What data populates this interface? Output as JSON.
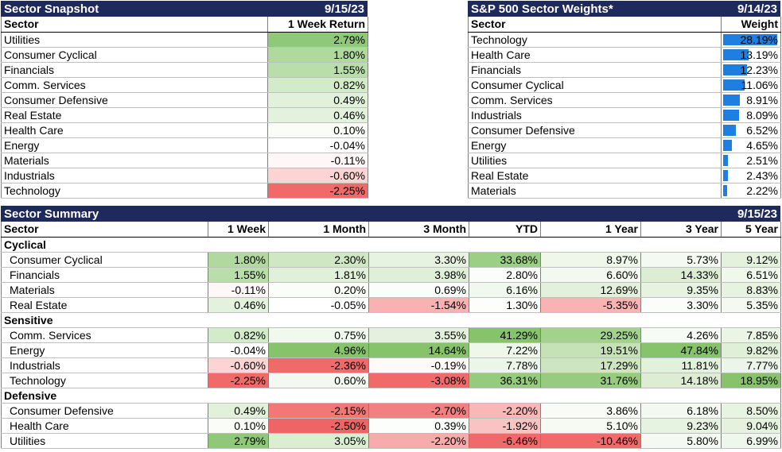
{
  "snapshot": {
    "title": "Sector Snapshot",
    "date": "9/15/23",
    "col_sector": "Sector",
    "col_return": "1 Week Return",
    "rows": [
      {
        "sector": "Utilities",
        "ret": "2.79%",
        "color": "#8fc878"
      },
      {
        "sector": "Consumer Cyclical",
        "ret": "1.80%",
        "color": "#b1d99f"
      },
      {
        "sector": "Financials",
        "ret": "1.55%",
        "color": "#badea9"
      },
      {
        "sector": "Comm. Services",
        "ret": "0.82%",
        "color": "#d4ebca"
      },
      {
        "sector": "Consumer Defensive",
        "ret": "0.49%",
        "color": "#e2f1da"
      },
      {
        "sector": "Real Estate",
        "ret": "0.46%",
        "color": "#e3f2dc"
      },
      {
        "sector": "Health Care",
        "ret": "0.10%",
        "color": "#f9fcf7"
      },
      {
        "sector": "Energy",
        "ret": "-0.04%",
        "color": "#ffffff"
      },
      {
        "sector": "Materials",
        "ret": "-0.11%",
        "color": "#fff7f7"
      },
      {
        "sector": "Industrials",
        "ret": "-0.60%",
        "color": "#fcd4d4"
      },
      {
        "sector": "Technology",
        "ret": "-2.25%",
        "color": "#f06a6a"
      }
    ]
  },
  "weights": {
    "title": "S&P 500 Sector Weights*",
    "date": "9/14/23",
    "col_sector": "Sector",
    "col_weight": "Weight",
    "bar_color": "#1f7fe0",
    "rows": [
      {
        "sector": "Technology",
        "weight": "28.19%",
        "value": 28.19
      },
      {
        "sector": "Health Care",
        "weight": "13.19%",
        "value": 13.19
      },
      {
        "sector": "Financials",
        "weight": "12.23%",
        "value": 12.23
      },
      {
        "sector": "Consumer Cyclical",
        "weight": "11.06%",
        "value": 11.06
      },
      {
        "sector": "Comm. Services",
        "weight": "8.91%",
        "value": 8.91
      },
      {
        "sector": "Industrials",
        "weight": "8.09%",
        "value": 8.09
      },
      {
        "sector": "Consumer Defensive",
        "weight": "6.52%",
        "value": 6.52
      },
      {
        "sector": "Energy",
        "weight": "4.65%",
        "value": 4.65
      },
      {
        "sector": "Utilities",
        "weight": "2.51%",
        "value": 2.51
      },
      {
        "sector": "Real Estate",
        "weight": "2.43%",
        "value": 2.43
      },
      {
        "sector": "Materials",
        "weight": "2.22%",
        "value": 2.22
      }
    ]
  },
  "summary": {
    "title": "Sector Summary",
    "date": "9/15/23",
    "headers": [
      "Sector",
      "1 Week",
      "1 Month",
      "3 Month",
      "YTD",
      "1 Year",
      "3 Year",
      "5 Year"
    ],
    "groups": [
      {
        "name": "Cyclical",
        "rows": [
          {
            "sector": "Consumer Cyclical",
            "cells": [
              {
                "v": "1.80%",
                "c": "#b1d99f"
              },
              {
                "v": "2.30%",
                "c": "#cfe8c3"
              },
              {
                "v": "3.30%",
                "c": "#e6f3e0"
              },
              {
                "v": "33.68%",
                "c": "#9ccf86"
              },
              {
                "v": "8.97%",
                "c": "#eef7ea"
              },
              {
                "v": "5.73%",
                "c": "#f4faf1"
              },
              {
                "v": "9.12%",
                "c": "#e4f2dd"
              }
            ]
          },
          {
            "sector": "Financials",
            "cells": [
              {
                "v": "1.55%",
                "c": "#badea9"
              },
              {
                "v": "1.81%",
                "c": "#e1f0d9"
              },
              {
                "v": "3.98%",
                "c": "#e0f0d8"
              },
              {
                "v": "2.80%",
                "c": "#fafdf9"
              },
              {
                "v": "6.60%",
                "c": "#f3f9f0"
              },
              {
                "v": "14.33%",
                "c": "#dcedd3"
              },
              {
                "v": "6.51%",
                "c": "#f0f8ec"
              }
            ]
          },
          {
            "sector": "Materials",
            "cells": [
              {
                "v": "-0.11%",
                "c": "#fff7f7"
              },
              {
                "v": "0.20%",
                "c": "#fafdf8"
              },
              {
                "v": "0.69%",
                "c": "#fbfdfa"
              },
              {
                "v": "6.16%",
                "c": "#f1f8ed"
              },
              {
                "v": "12.69%",
                "c": "#e3f1dc"
              },
              {
                "v": "9.35%",
                "c": "#e6f3e0"
              },
              {
                "v": "8.83%",
                "c": "#e6f3df"
              }
            ]
          },
          {
            "sector": "Real Estate",
            "cells": [
              {
                "v": "0.46%",
                "c": "#e3f2dc"
              },
              {
                "v": "-0.05%",
                "c": "#ffffff"
              },
              {
                "v": "-1.54%",
                "c": "#f9b1b1"
              },
              {
                "v": "1.30%",
                "c": "#fdfefc"
              },
              {
                "v": "-5.35%",
                "c": "#f9b3b3"
              },
              {
                "v": "3.30%",
                "c": "#fafdf9"
              },
              {
                "v": "5.35%",
                "c": "#f4faf1"
              }
            ]
          }
        ]
      },
      {
        "name": "Sensitive",
        "rows": [
          {
            "sector": "Comm. Services",
            "cells": [
              {
                "v": "0.82%",
                "c": "#d4ebca"
              },
              {
                "v": "0.75%",
                "c": "#f1f8ee"
              },
              {
                "v": "3.55%",
                "c": "#e4f2dd"
              },
              {
                "v": "41.29%",
                "c": "#86c36b"
              },
              {
                "v": "29.25%",
                "c": "#a2d38d"
              },
              {
                "v": "4.26%",
                "c": "#f7fbf5"
              },
              {
                "v": "7.85%",
                "c": "#ebf5e6"
              }
            ]
          },
          {
            "sector": "Energy",
            "cells": [
              {
                "v": "-0.04%",
                "c": "#ffffff"
              },
              {
                "v": "4.96%",
                "c": "#86c36b"
              },
              {
                "v": "14.64%",
                "c": "#86c36b"
              },
              {
                "v": "7.22%",
                "c": "#eef7ea"
              },
              {
                "v": "19.51%",
                "c": "#c4e2b6"
              },
              {
                "v": "47.84%",
                "c": "#86c36b"
              },
              {
                "v": "9.82%",
                "c": "#e0f0d8"
              }
            ]
          },
          {
            "sector": "Industrials",
            "cells": [
              {
                "v": "-0.60%",
                "c": "#fcd4d4"
              },
              {
                "v": "-2.36%",
                "c": "#f06a6a"
              },
              {
                "v": "-0.19%",
                "c": "#fffafa"
              },
              {
                "v": "7.78%",
                "c": "#ecf6e8"
              },
              {
                "v": "17.29%",
                "c": "#cde6c1"
              },
              {
                "v": "11.81%",
                "c": "#e2f1db"
              },
              {
                "v": "7.77%",
                "c": "#ecf6e8"
              }
            ]
          },
          {
            "sector": "Technology",
            "cells": [
              {
                "v": "-2.25%",
                "c": "#f06a6a"
              },
              {
                "v": "0.60%",
                "c": "#f3f9f0"
              },
              {
                "v": "-3.08%",
                "c": "#f06a6a"
              },
              {
                "v": "36.31%",
                "c": "#94cb7c"
              },
              {
                "v": "31.76%",
                "c": "#97cc80"
              },
              {
                "v": "14.18%",
                "c": "#dcedd3"
              },
              {
                "v": "18.95%",
                "c": "#86c36b"
              }
            ]
          }
        ]
      },
      {
        "name": "Defensive",
        "rows": [
          {
            "sector": "Consumer Defensive",
            "cells": [
              {
                "v": "0.49%",
                "c": "#e2f1da"
              },
              {
                "v": "-2.15%",
                "c": "#f27777"
              },
              {
                "v": "-2.70%",
                "c": "#f28080"
              },
              {
                "v": "-2.20%",
                "c": "#f9b8b8"
              },
              {
                "v": "3.86%",
                "c": "#f8fbf6"
              },
              {
                "v": "6.18%",
                "c": "#f3f9f0"
              },
              {
                "v": "8.50%",
                "c": "#e8f4e2"
              }
            ]
          },
          {
            "sector": "Health Care",
            "cells": [
              {
                "v": "0.10%",
                "c": "#f9fcf7"
              },
              {
                "v": "-2.50%",
                "c": "#ef6464"
              },
              {
                "v": "0.39%",
                "c": "#fcfefb"
              },
              {
                "v": "-1.92%",
                "c": "#fac3c3"
              },
              {
                "v": "5.10%",
                "c": "#f6faf3"
              },
              {
                "v": "9.23%",
                "c": "#e7f3e1"
              },
              {
                "v": "9.04%",
                "c": "#e5f2de"
              }
            ]
          },
          {
            "sector": "Utilities",
            "cells": [
              {
                "v": "2.79%",
                "c": "#8fc878"
              },
              {
                "v": "3.05%",
                "c": "#dbeed2"
              },
              {
                "v": "-2.20%",
                "c": "#f8abab"
              },
              {
                "v": "-6.46%",
                "c": "#f06a6a"
              },
              {
                "v": "-10.46%",
                "c": "#f06a6a"
              },
              {
                "v": "5.80%",
                "c": "#f4faf1"
              },
              {
                "v": "6.99%",
                "c": "#eef7eb"
              }
            ]
          }
        ]
      }
    ]
  }
}
